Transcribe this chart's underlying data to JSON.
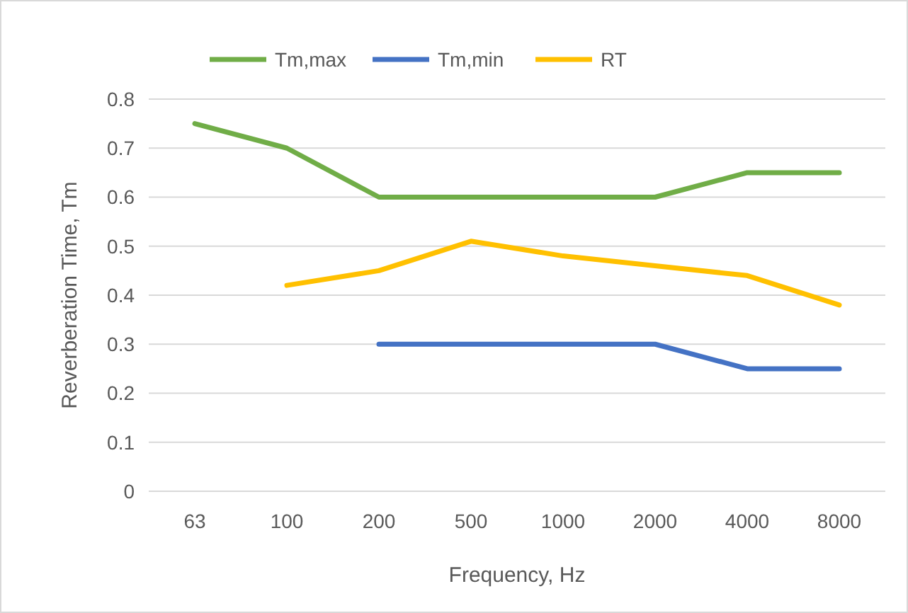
{
  "chart_data": {
    "type": "line",
    "xlabel": "Frequency, Hz",
    "ylabel": "Reverberation Time, Tm",
    "categories": [
      "63",
      "100",
      "200",
      "500",
      "1000",
      "2000",
      "4000",
      "8000"
    ],
    "series": [
      {
        "name": "Tm,max",
        "color": "#70ad47",
        "values": [
          0.75,
          0.7,
          0.6,
          0.6,
          0.6,
          0.6,
          0.65,
          0.65
        ]
      },
      {
        "name": "Tm,min",
        "color": "#4472c4",
        "values": [
          null,
          null,
          0.3,
          0.3,
          0.3,
          0.3,
          0.25,
          0.25
        ]
      },
      {
        "name": "RT",
        "color": "#ffc000",
        "values": [
          null,
          0.42,
          0.45,
          0.51,
          0.48,
          0.46,
          0.44,
          0.38
        ]
      }
    ],
    "ylim": [
      0,
      0.8
    ],
    "yticks": [
      0,
      0.1,
      0.2,
      0.3,
      0.4,
      0.5,
      0.6,
      0.7,
      0.8
    ],
    "grid": "y",
    "legend": "top",
    "marker": "none",
    "line_style": "solid"
  }
}
